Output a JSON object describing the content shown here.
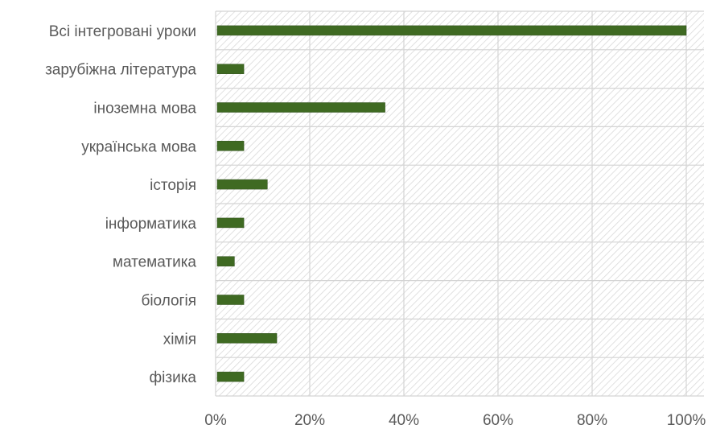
{
  "chart_data": {
    "type": "bar",
    "orientation": "horizontal",
    "title": "",
    "xlabel": "",
    "ylabel": "",
    "categories": [
      "Всі інтегровані уроки",
      "зарубіжна література",
      "іноземна мова",
      "українська мова",
      "історія",
      "інформатика",
      "математика",
      "біологія",
      "хімія",
      "фізика"
    ],
    "values": [
      100,
      6,
      36,
      6,
      11,
      6,
      4,
      6,
      13,
      6
    ],
    "unit": "%",
    "xlim": [
      0,
      100
    ],
    "x_ticks": [
      "0%",
      "20%",
      "40%",
      "60%",
      "80%",
      "100%"
    ],
    "x_tick_values": [
      0,
      20,
      40,
      60,
      80,
      100
    ],
    "grid": true,
    "plot_background": "diagonal-hatch",
    "colors": {
      "bar": "#3f6a22",
      "hatch": "#d9d9d9",
      "grid": "#d4d4d4",
      "text": "#5a5a5a"
    }
  }
}
